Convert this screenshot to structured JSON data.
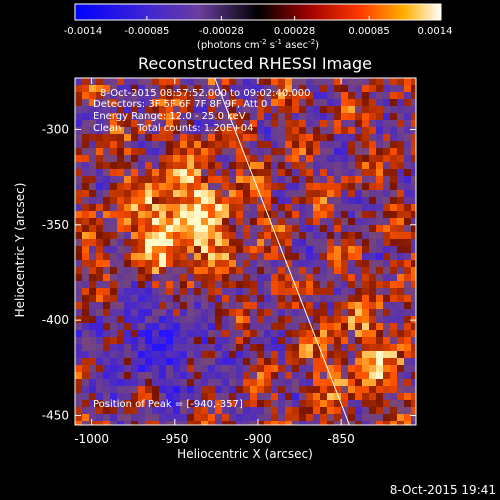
{
  "colorbar": {
    "tick_labels": [
      "-0.0014",
      "-0.00085",
      "-0.00028",
      "0.00028",
      "0.00085",
      "0.0014"
    ],
    "range": [
      -0.0014,
      0.0014
    ],
    "unit_label_prefix": "(photons cm",
    "unit_label_exp1": "-2",
    "unit_label_mid": " s",
    "unit_label_exp2": "-1",
    "unit_label_mid2": " asec",
    "unit_label_exp3": "-2",
    "unit_label_suffix": ")"
  },
  "chart_data": {
    "type": "heatmap",
    "title": "Reconstructed RHESSI Image",
    "xlabel": "Heliocentric X (arcsec)",
    "ylabel": "Heliocentric Y (arcsec)",
    "xlim": [
      -1010,
      -805
    ],
    "ylim": [
      -455,
      -273
    ],
    "x_ticks": [
      -1000,
      -950,
      -900,
      -850
    ],
    "x_tick_labels": [
      "-1000",
      "-950",
      "-900",
      "-850"
    ],
    "y_ticks": [
      -450,
      -400,
      -350,
      -300
    ],
    "y_tick_labels": [
      "-450",
      "-400",
      "-350",
      "-300"
    ],
    "annotations": {
      "time_range": "8-Oct-2015 08:57:52.000 to 09:02:40.000",
      "detectors": "Detectors: 3F 5F 6F 7F 8F 9F, Att 0",
      "energy_range": "Energy Range: 12.0 - 25.0 keV",
      "clean_counts": "Clean     Total counts: 1.20E+04",
      "peak": "Position of Peak = [-940,-357]"
    },
    "peak_position": [
      -940,
      -357
    ],
    "limb_line": {
      "x": [
        -926,
        -845
      ],
      "y": [
        -273,
        -455
      ]
    }
  },
  "footer": {
    "timestamp": "8-Oct-2015 19:41"
  }
}
